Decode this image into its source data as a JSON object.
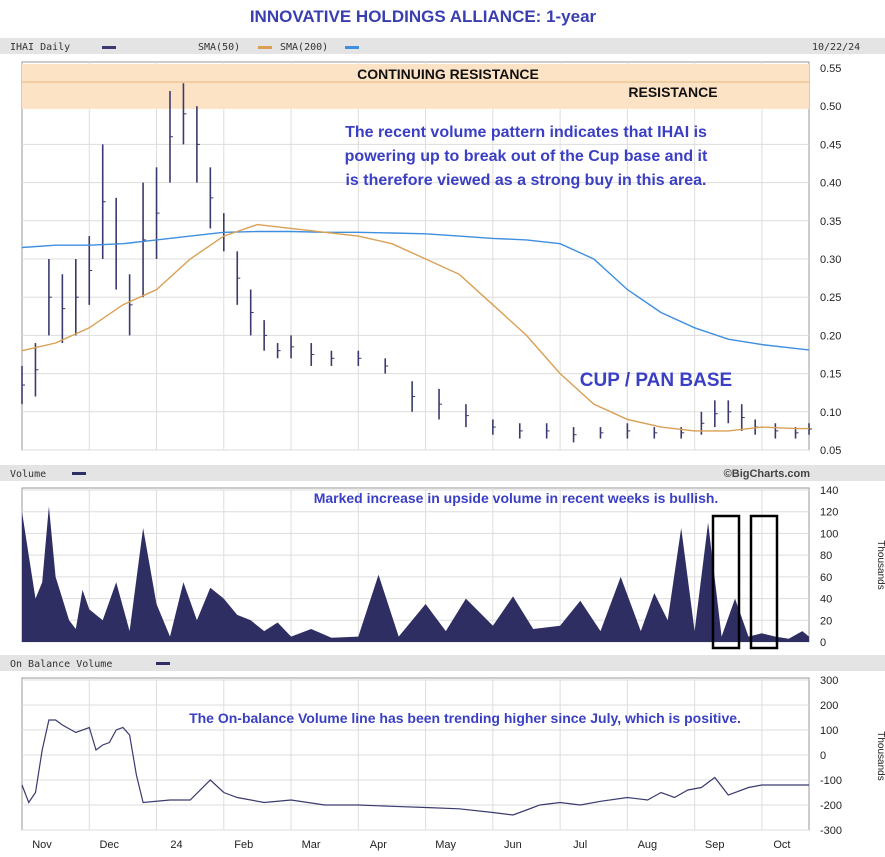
{
  "title": "INNOVATIVE HOLDINGS ALLIANCE: 1-year",
  "header": {
    "price_legend": "IHAI Daily",
    "sma50_legend": "SMA(50)",
    "sma200_legend": "SMA(200)",
    "date": "10/22/24"
  },
  "colors": {
    "price": "#3a3a6e",
    "sma50": "#d9a054",
    "sma200": "#3f8fe0",
    "volume": "#2e2e63",
    "band": "#fce3c6",
    "annotation": "#3a3fc4"
  },
  "price_panel": {
    "band_top_label": "CONTINUING RESISTANCE",
    "band_bottom_label": "RESISTANCE",
    "annotation_lines": [
      "The recent volume pattern indicates that IHAI is",
      "powering up to break out of the Cup base and it",
      "is therefore viewed as a strong buy in this area."
    ],
    "pattern_label": "CUP / PAN BASE",
    "y_ticks": [
      "0.55",
      "0.50",
      "0.45",
      "0.40",
      "0.35",
      "0.30",
      "0.25",
      "0.20",
      "0.15",
      "0.10",
      "0.05"
    ]
  },
  "volume_panel": {
    "legend": "Volume",
    "credit": "©BigCharts.com",
    "annotation": "Marked increase in upside volume in recent weeks is bullish.",
    "unit": "Thousands",
    "y_ticks": [
      "140",
      "120",
      "100",
      "80",
      "60",
      "40",
      "20",
      "0"
    ]
  },
  "obv_panel": {
    "legend": "On Balance Volume",
    "annotation": "The On-balance Volume line has been trending higher since July, which is positive.",
    "unit": "Thousands",
    "y_ticks": [
      "300",
      "200",
      "100",
      "0",
      "-100",
      "-200",
      "-300"
    ]
  },
  "x_ticks": [
    "Nov",
    "Dec",
    "24",
    "Feb",
    "Mar",
    "Apr",
    "May",
    "Jun",
    "Jul",
    "Aug",
    "Sep",
    "Oct"
  ],
  "chart_data": {
    "type": "line",
    "x_unit": "month index (0 = start of Nov 2023, 11.7 = 10/22/24)",
    "price": {
      "name": "IHAI Daily",
      "ylim": [
        0.05,
        0.55
      ],
      "range_resistance": [
        0.52,
        0.545
      ],
      "x": [
        0,
        0.2,
        0.4,
        0.6,
        0.8,
        1.0,
        1.2,
        1.4,
        1.6,
        1.8,
        2.0,
        2.2,
        2.4,
        2.6,
        2.8,
        3.0,
        3.2,
        3.4,
        3.6,
        3.8,
        4.0,
        4.3,
        4.6,
        5.0,
        5.4,
        5.8,
        6.2,
        6.6,
        7.0,
        7.4,
        7.8,
        8.2,
        8.6,
        9.0,
        9.4,
        9.8,
        10.1,
        10.3,
        10.5,
        10.7,
        10.9,
        11.2,
        11.5,
        11.7
      ],
      "high": [
        0.16,
        0.19,
        0.3,
        0.28,
        0.3,
        0.33,
        0.45,
        0.38,
        0.28,
        0.4,
        0.42,
        0.52,
        0.53,
        0.5,
        0.42,
        0.36,
        0.31,
        0.26,
        0.22,
        0.19,
        0.2,
        0.19,
        0.18,
        0.18,
        0.17,
        0.14,
        0.13,
        0.11,
        0.09,
        0.085,
        0.085,
        0.08,
        0.08,
        0.085,
        0.08,
        0.08,
        0.1,
        0.115,
        0.115,
        0.11,
        0.09,
        0.085,
        0.08,
        0.085
      ],
      "low": [
        0.11,
        0.12,
        0.2,
        0.19,
        0.2,
        0.24,
        0.3,
        0.26,
        0.2,
        0.25,
        0.3,
        0.4,
        0.45,
        0.4,
        0.34,
        0.31,
        0.24,
        0.2,
        0.18,
        0.17,
        0.17,
        0.16,
        0.16,
        0.16,
        0.15,
        0.1,
        0.09,
        0.08,
        0.07,
        0.065,
        0.065,
        0.06,
        0.065,
        0.065,
        0.065,
        0.065,
        0.07,
        0.08,
        0.085,
        0.075,
        0.07,
        0.065,
        0.065,
        0.07
      ]
    },
    "sma50": {
      "name": "SMA(50)",
      "x": [
        0,
        0.5,
        1.0,
        1.5,
        2.0,
        2.5,
        3.0,
        3.5,
        4.0,
        4.5,
        5.0,
        5.5,
        6.0,
        6.5,
        7.0,
        7.5,
        8.0,
        8.5,
        9.0,
        9.5,
        10.0,
        10.5,
        11.0,
        11.5,
        11.7
      ],
      "values": [
        0.18,
        0.19,
        0.21,
        0.24,
        0.26,
        0.3,
        0.33,
        0.345,
        0.34,
        0.335,
        0.33,
        0.32,
        0.3,
        0.28,
        0.24,
        0.2,
        0.15,
        0.11,
        0.09,
        0.08,
        0.075,
        0.075,
        0.08,
        0.078,
        0.078
      ]
    },
    "sma200": {
      "name": "SMA(200)",
      "x": [
        0,
        0.5,
        1.0,
        1.5,
        2.0,
        2.5,
        3.0,
        3.5,
        4.0,
        4.5,
        5.0,
        5.5,
        6.0,
        6.5,
        7.0,
        7.5,
        8.0,
        8.5,
        9.0,
        9.5,
        10.0,
        10.5,
        11.0,
        11.5,
        11.7
      ],
      "values": [
        0.315,
        0.318,
        0.318,
        0.32,
        0.325,
        0.33,
        0.335,
        0.336,
        0.336,
        0.335,
        0.335,
        0.334,
        0.333,
        0.33,
        0.327,
        0.325,
        0.32,
        0.3,
        0.26,
        0.23,
        0.21,
        0.195,
        0.188,
        0.183,
        0.181
      ]
    },
    "volume": {
      "name": "Volume",
      "unit": "Thousands",
      "ylim": [
        0,
        140
      ],
      "x": [
        0,
        0.1,
        0.2,
        0.3,
        0.4,
        0.5,
        0.6,
        0.7,
        0.8,
        0.9,
        1.0,
        1.2,
        1.4,
        1.6,
        1.8,
        2.0,
        2.2,
        2.4,
        2.6,
        2.8,
        3.0,
        3.2,
        3.4,
        3.6,
        3.8,
        4.0,
        4.3,
        4.6,
        5.0,
        5.3,
        5.6,
        6.0,
        6.3,
        6.6,
        7.0,
        7.3,
        7.6,
        8.0,
        8.3,
        8.6,
        8.9,
        9.2,
        9.4,
        9.6,
        9.8,
        10.0,
        10.2,
        10.4,
        10.6,
        10.8,
        11.0,
        11.2,
        11.4,
        11.6,
        11.7
      ],
      "values": [
        120,
        80,
        40,
        55,
        125,
        60,
        40,
        20,
        12,
        48,
        30,
        20,
        55,
        10,
        105,
        35,
        5,
        55,
        20,
        50,
        40,
        25,
        20,
        10,
        18,
        5,
        12,
        4,
        5,
        62,
        5,
        35,
        10,
        40,
        15,
        42,
        12,
        15,
        38,
        10,
        60,
        10,
        45,
        20,
        105,
        10,
        110,
        5,
        40,
        5,
        8,
        5,
        3,
        10,
        5
      ]
    },
    "obv": {
      "name": "On Balance Volume",
      "unit": "Thousands",
      "ylim": [
        -300,
        300
      ],
      "x": [
        0,
        0.1,
        0.2,
        0.3,
        0.4,
        0.5,
        0.6,
        0.8,
        1.0,
        1.1,
        1.2,
        1.3,
        1.4,
        1.5,
        1.6,
        1.7,
        1.8,
        2.2,
        2.5,
        2.8,
        3.0,
        3.2,
        3.6,
        4.0,
        4.5,
        5.0,
        5.5,
        6.0,
        6.5,
        7.0,
        7.3,
        7.5,
        7.7,
        8.0,
        8.3,
        8.6,
        9.0,
        9.3,
        9.5,
        9.7,
        9.9,
        10.1,
        10.3,
        10.5,
        10.8,
        11.0,
        11.5,
        11.7
      ],
      "values": [
        -120,
        -190,
        -150,
        20,
        140,
        140,
        120,
        90,
        110,
        20,
        40,
        50,
        100,
        110,
        80,
        -80,
        -190,
        -180,
        -180,
        -100,
        -150,
        -170,
        -190,
        -180,
        -200,
        -200,
        -205,
        -210,
        -215,
        -230,
        -240,
        -220,
        -200,
        -190,
        -200,
        -185,
        -170,
        -180,
        -150,
        -170,
        -140,
        -130,
        -90,
        -160,
        -130,
        -120,
        -120,
        -120
      ]
    }
  }
}
